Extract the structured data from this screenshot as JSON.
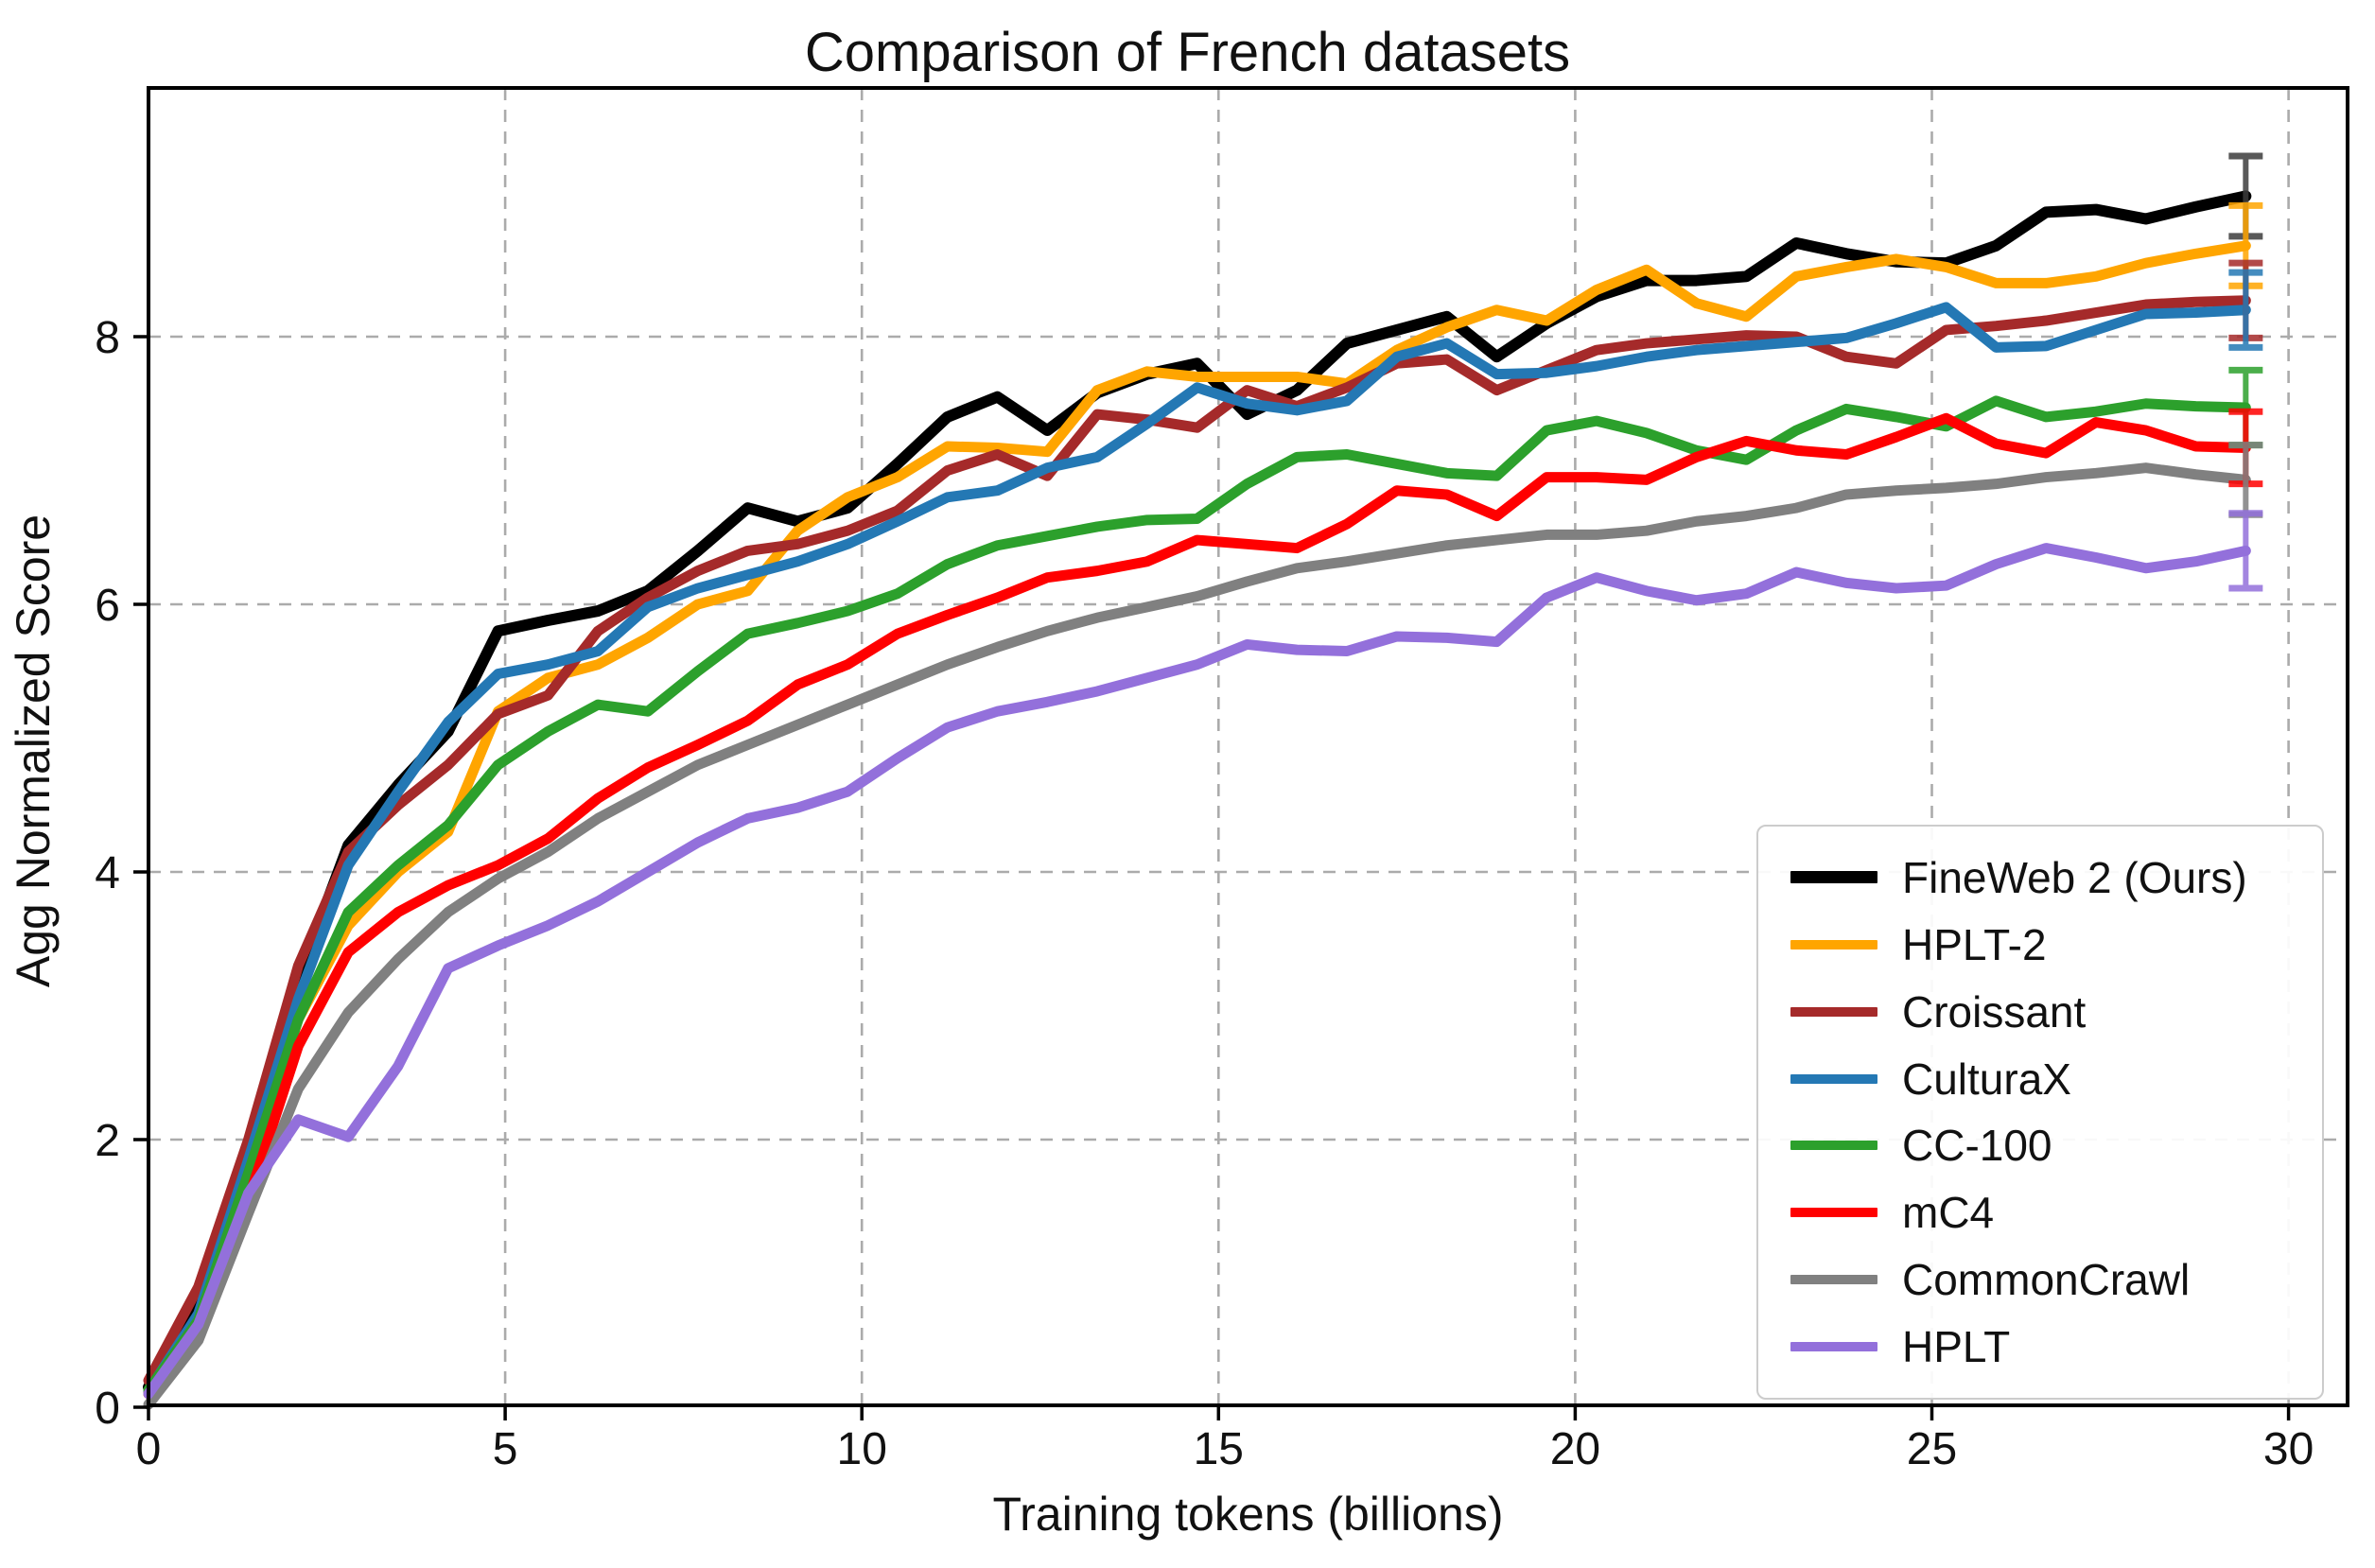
{
  "chart_data": {
    "type": "line",
    "title": "Comparison of French datasets",
    "xlabel": "Training tokens (billions)",
    "ylabel": "Agg Normalized Score",
    "xlim": [
      0,
      30.8
    ],
    "ylim": [
      0,
      9.86
    ],
    "xticks": [
      "0",
      "5",
      "10",
      "15",
      "20",
      "25",
      "30"
    ],
    "xtick_values": [
      0,
      5,
      10,
      15,
      20,
      25,
      30
    ],
    "yticks": [
      "0",
      "2",
      "4",
      "6",
      "8"
    ],
    "ytick_values": [
      0,
      2,
      4,
      6,
      8
    ],
    "grid": true,
    "grid_style": "dashed",
    "legend_position": "lower right",
    "error_x": 29.4,
    "x": [
      0,
      0.7,
      1.4,
      2.1,
      2.8,
      3.5,
      4.2,
      4.9,
      5.6,
      6.3,
      7.0,
      7.7,
      8.4,
      9.1,
      9.8,
      10.5,
      11.2,
      11.9,
      12.6,
      13.3,
      14.0,
      14.7,
      15.4,
      16.1,
      16.8,
      17.5,
      18.2,
      18.9,
      19.6,
      20.3,
      21.0,
      21.7,
      22.4,
      23.1,
      23.8,
      24.5,
      25.2,
      25.9,
      26.6,
      27.3,
      28.0,
      28.7,
      29.4
    ],
    "series": [
      {
        "name": "FineWeb 2 (Ours)",
        "color": "#000000",
        "errorbar_color": "#3d3d3d",
        "linewidth": 12,
        "error_final": 0.3,
        "values": [
          0.15,
          0.85,
          1.95,
          3.2,
          4.2,
          4.65,
          5.05,
          5.8,
          5.88,
          5.95,
          6.1,
          6.4,
          6.72,
          6.62,
          6.72,
          7.05,
          7.4,
          7.55,
          7.3,
          7.58,
          7.72,
          7.8,
          7.42,
          7.6,
          7.95,
          8.05,
          8.15,
          7.85,
          8.1,
          8.3,
          8.42,
          8.42,
          8.45,
          8.7,
          8.62,
          8.56,
          8.55,
          8.68,
          8.93,
          8.95,
          8.88,
          8.97,
          9.05
        ]
      },
      {
        "name": "HPLT-2",
        "color": "#FFA500",
        "errorbar_color": "#FFA500",
        "linewidth": 11,
        "error_final": 0.3,
        "values": [
          0.1,
          0.6,
          1.7,
          2.9,
          3.6,
          4.0,
          4.3,
          5.2,
          5.45,
          5.55,
          5.75,
          6.0,
          6.1,
          6.55,
          6.8,
          6.95,
          7.18,
          7.17,
          7.14,
          7.6,
          7.74,
          7.7,
          7.7,
          7.7,
          7.65,
          7.9,
          8.07,
          8.2,
          8.12,
          8.35,
          8.5,
          8.25,
          8.15,
          8.45,
          8.52,
          8.58,
          8.52,
          8.4,
          8.4,
          8.45,
          8.55,
          8.62,
          8.68
        ]
      },
      {
        "name": "Croissant",
        "color": "#A52A2A",
        "errorbar_color": "#A52A2A",
        "linewidth": 11,
        "error_final": 0.28,
        "values": [
          0.2,
          0.9,
          2.0,
          3.3,
          4.15,
          4.5,
          4.8,
          5.18,
          5.32,
          5.8,
          6.05,
          6.25,
          6.4,
          6.45,
          6.55,
          6.7,
          7.0,
          7.12,
          6.96,
          7.42,
          7.38,
          7.32,
          7.6,
          7.48,
          7.62,
          7.8,
          7.83,
          7.6,
          7.75,
          7.9,
          7.95,
          7.98,
          8.01,
          8.0,
          7.85,
          7.8,
          8.05,
          8.08,
          8.12,
          8.18,
          8.24,
          8.26,
          8.27
        ]
      },
      {
        "name": "CulturaX",
        "color": "#2478B4",
        "errorbar_color": "#2478B4",
        "linewidth": 11,
        "error_final": 0.28,
        "values": [
          0.12,
          0.7,
          1.85,
          3.05,
          4.05,
          4.6,
          5.12,
          5.48,
          5.55,
          5.65,
          5.98,
          6.12,
          6.22,
          6.32,
          6.45,
          6.62,
          6.8,
          6.85,
          7.02,
          7.1,
          7.35,
          7.62,
          7.5,
          7.45,
          7.52,
          7.85,
          7.95,
          7.72,
          7.73,
          7.78,
          7.85,
          7.9,
          7.93,
          7.96,
          7.99,
          8.1,
          8.22,
          7.92,
          7.93,
          8.05,
          8.17,
          8.18,
          8.2
        ]
      },
      {
        "name": "CC-100",
        "color": "#2CA02C",
        "errorbar_color": "#2CA02C",
        "linewidth": 11,
        "error_final": 0.28,
        "values": [
          0.13,
          0.65,
          1.75,
          2.9,
          3.7,
          4.05,
          4.35,
          4.8,
          5.05,
          5.25,
          5.2,
          5.5,
          5.78,
          5.86,
          5.95,
          6.08,
          6.3,
          6.44,
          6.51,
          6.58,
          6.63,
          6.64,
          6.9,
          7.1,
          7.12,
          7.05,
          6.98,
          6.96,
          7.3,
          7.37,
          7.28,
          7.15,
          7.08,
          7.3,
          7.46,
          7.4,
          7.33,
          7.52,
          7.4,
          7.44,
          7.5,
          7.48,
          7.47
        ]
      },
      {
        "name": "mC4",
        "color": "#FF0000",
        "errorbar_color": "#FF0000",
        "linewidth": 11,
        "error_final": 0.27,
        "values": [
          0.1,
          0.6,
          1.55,
          2.7,
          3.4,
          3.7,
          3.9,
          4.05,
          4.25,
          4.55,
          4.78,
          4.95,
          5.13,
          5.4,
          5.55,
          5.78,
          5.92,
          6.05,
          6.2,
          6.25,
          6.32,
          6.48,
          6.45,
          6.42,
          6.6,
          6.85,
          6.82,
          6.66,
          6.95,
          6.95,
          6.93,
          7.1,
          7.22,
          7.15,
          7.12,
          7.25,
          7.39,
          7.2,
          7.13,
          7.36,
          7.3,
          7.18,
          7.17
        ]
      },
      {
        "name": "CommonCrawl",
        "color": "#808080",
        "errorbar_color": "#808080",
        "linewidth": 11,
        "error_final": 0.26,
        "values": [
          0.02,
          0.5,
          1.45,
          2.38,
          2.95,
          3.35,
          3.7,
          3.95,
          4.15,
          4.4,
          4.6,
          4.8,
          4.95,
          5.1,
          5.25,
          5.4,
          5.55,
          5.68,
          5.8,
          5.9,
          5.98,
          6.06,
          6.17,
          6.27,
          6.32,
          6.38,
          6.44,
          6.48,
          6.52,
          6.52,
          6.55,
          6.62,
          6.66,
          6.72,
          6.82,
          6.85,
          6.87,
          6.9,
          6.95,
          6.98,
          7.02,
          6.97,
          6.93
        ]
      },
      {
        "name": "HPLT",
        "color": "#9370DB",
        "errorbar_color": "#9370DB",
        "linewidth": 11,
        "error_final": 0.28,
        "values": [
          0.1,
          0.62,
          1.6,
          2.15,
          2.02,
          2.55,
          3.28,
          3.45,
          3.6,
          3.78,
          4.0,
          4.22,
          4.4,
          4.48,
          4.6,
          4.85,
          5.08,
          5.2,
          5.27,
          5.35,
          5.45,
          5.55,
          5.7,
          5.66,
          5.65,
          5.76,
          5.75,
          5.72,
          6.05,
          6.2,
          6.1,
          6.03,
          6.08,
          6.24,
          6.16,
          6.12,
          6.14,
          6.3,
          6.42,
          6.35,
          6.27,
          6.32,
          6.4
        ]
      }
    ]
  }
}
